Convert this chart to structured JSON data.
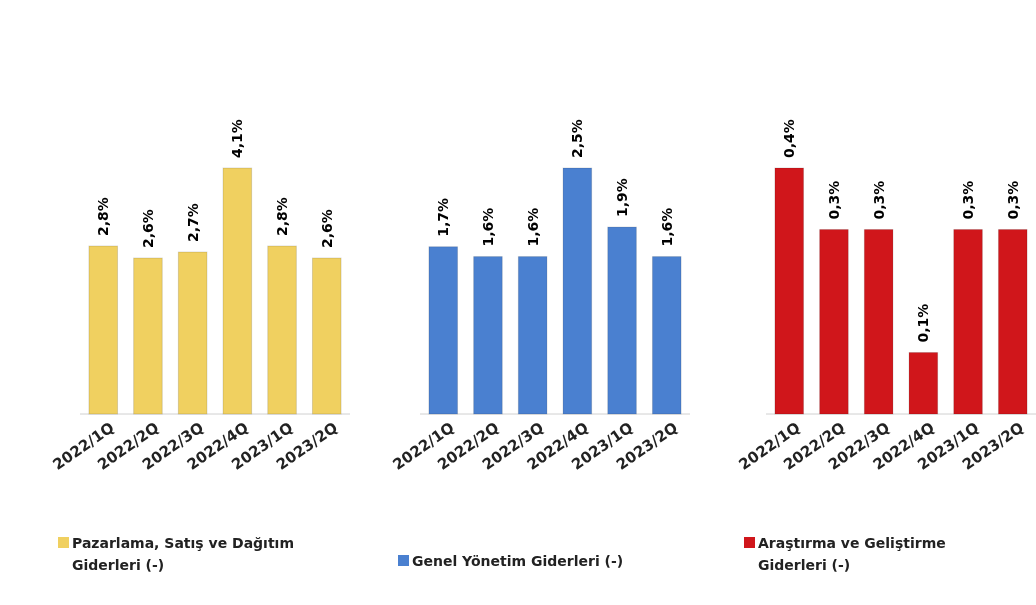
{
  "chart_data": [
    {
      "type": "bar",
      "categories": [
        "2022/1Q",
        "2022/2Q",
        "2022/3Q",
        "2022/4Q",
        "2023/1Q",
        "2023/2Q"
      ],
      "legend": "bottom",
      "series": [
        {
          "name": "Pazarlama, Satış ve Dağıtım Giderleri (-)",
          "color": "#f0d060",
          "values": [
            2.8,
            2.6,
            2.7,
            4.1,
            2.8,
            2.6
          ],
          "value_labels": [
            "2,8%",
            "2,6%",
            "2,7%",
            "4,1%",
            "2,8%",
            "2,6%"
          ]
        }
      ]
    },
    {
      "type": "bar",
      "categories": [
        "2022/1Q",
        "2022/2Q",
        "2022/3Q",
        "2022/4Q",
        "2023/1Q",
        "2023/2Q"
      ],
      "legend": "bottom",
      "series": [
        {
          "name": "Genel Yönetim Giderleri (-)",
          "color": "#4a80d0",
          "values": [
            1.7,
            1.6,
            1.6,
            2.5,
            1.9,
            1.6
          ],
          "value_labels": [
            "1,7%",
            "1,6%",
            "1,6%",
            "2,5%",
            "1,9%",
            "1,6%"
          ]
        }
      ]
    },
    {
      "type": "bar",
      "categories": [
        "2022/1Q",
        "2022/2Q",
        "2022/3Q",
        "2022/4Q",
        "2023/1Q",
        "2023/2Q"
      ],
      "legend": "bottom",
      "series": [
        {
          "name": "Araştırma ve Geliştirme Giderleri (-)",
          "color": "#d0161b",
          "values": [
            0.4,
            0.3,
            0.3,
            0.1,
            0.3,
            0.3
          ],
          "value_labels": [
            "0,4%",
            "0,3%",
            "0,3%",
            "0,1%",
            "0,3%",
            "0,3%"
          ]
        }
      ]
    }
  ]
}
